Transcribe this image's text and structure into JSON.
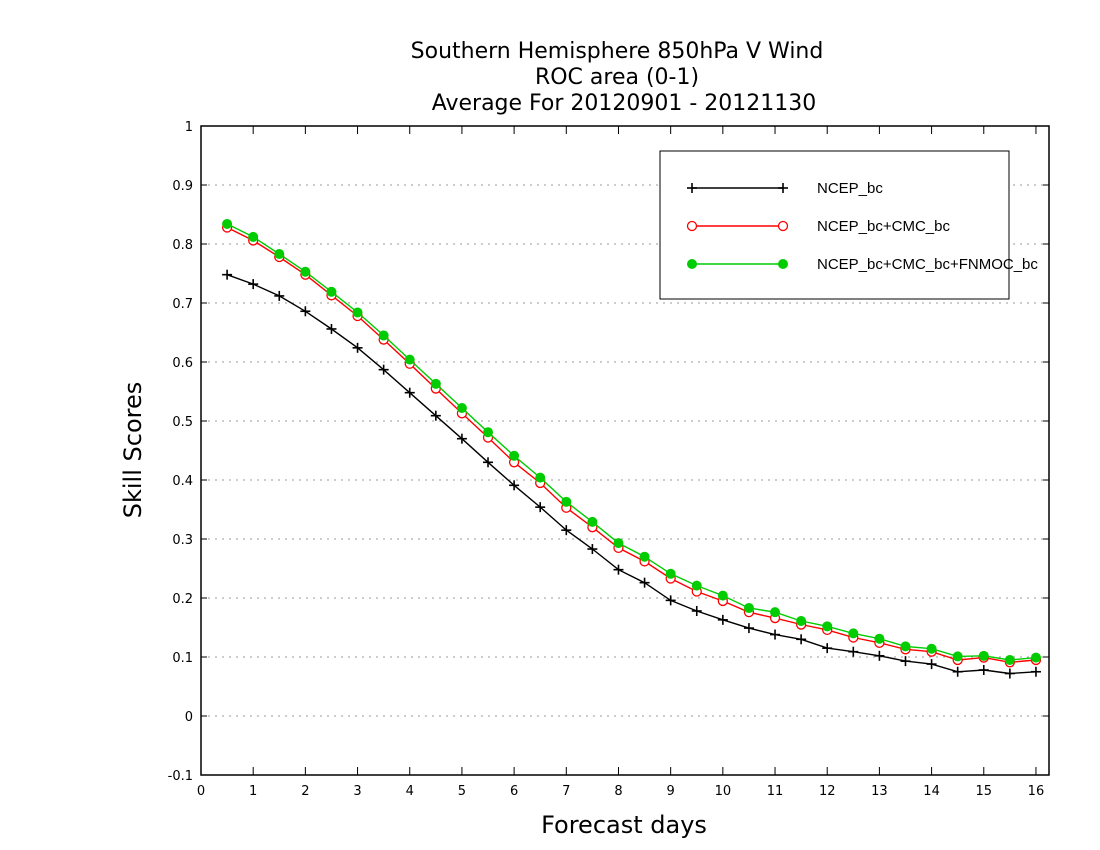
{
  "chart_data": {
    "type": "line",
    "title_lines": [
      "Southern Hemisphere 850hPa V Wind",
      "ROC area (0-1)",
      "Average For 20120901 - 20121130"
    ],
    "xlabel": "Forecast days",
    "ylabel": "Skill Scores",
    "xlim": [
      0,
      16.25
    ],
    "ylim": [
      -0.1,
      1
    ],
    "x_ticks": [
      0,
      1,
      2,
      3,
      4,
      5,
      6,
      7,
      8,
      9,
      10,
      11,
      12,
      13,
      14,
      15,
      16
    ],
    "y_ticks": [
      -0.1,
      0,
      0.1,
      0.2,
      0.3,
      0.4,
      0.5,
      0.6,
      0.7,
      0.8,
      0.9,
      1
    ],
    "y_tick_labels": [
      "-0.1",
      "0",
      "0.1",
      "0.2",
      "0.3",
      "0.4",
      "0.5",
      "0.6",
      "0.7",
      "0.8",
      "0.9",
      "1"
    ],
    "grid": "horizontal-dotted",
    "legend_position": "top-right",
    "x": [
      0.5,
      1,
      1.5,
      2,
      2.5,
      3,
      3.5,
      4,
      4.5,
      5,
      5.5,
      6,
      6.5,
      7,
      7.5,
      8,
      8.5,
      9,
      9.5,
      10,
      10.5,
      11,
      11.5,
      12,
      12.5,
      13,
      13.5,
      14,
      14.5,
      15,
      15.5,
      16
    ],
    "series": [
      {
        "name": "NCEP_bc",
        "color": "#000000",
        "marker": "plus",
        "values": [
          0.748,
          0.732,
          0.712,
          0.686,
          0.656,
          0.624,
          0.587,
          0.548,
          0.509,
          0.47,
          0.43,
          0.391,
          0.354,
          0.315,
          0.283,
          0.248,
          0.226,
          0.196,
          0.178,
          0.163,
          0.149,
          0.138,
          0.13,
          0.115,
          0.109,
          0.102,
          0.093,
          0.088,
          0.075,
          0.078,
          0.072,
          0.075
        ]
      },
      {
        "name": "NCEP_bc+CMC_bc",
        "color": "#ff0000",
        "marker": "open-circle",
        "values": [
          0.828,
          0.806,
          0.778,
          0.748,
          0.713,
          0.678,
          0.638,
          0.597,
          0.555,
          0.513,
          0.472,
          0.43,
          0.395,
          0.353,
          0.32,
          0.285,
          0.262,
          0.233,
          0.211,
          0.195,
          0.176,
          0.166,
          0.155,
          0.146,
          0.133,
          0.124,
          0.113,
          0.109,
          0.095,
          0.099,
          0.091,
          0.095
        ]
      },
      {
        "name": "NCEP_bc+CMC_bc+FNMOC_bc",
        "color": "#00cc00",
        "marker": "filled-circle",
        "values": [
          0.834,
          0.812,
          0.783,
          0.753,
          0.719,
          0.684,
          0.645,
          0.604,
          0.563,
          0.522,
          0.481,
          0.441,
          0.404,
          0.363,
          0.329,
          0.293,
          0.27,
          0.241,
          0.221,
          0.204,
          0.183,
          0.176,
          0.161,
          0.152,
          0.14,
          0.131,
          0.118,
          0.114,
          0.101,
          0.102,
          0.095,
          0.099
        ]
      }
    ]
  }
}
